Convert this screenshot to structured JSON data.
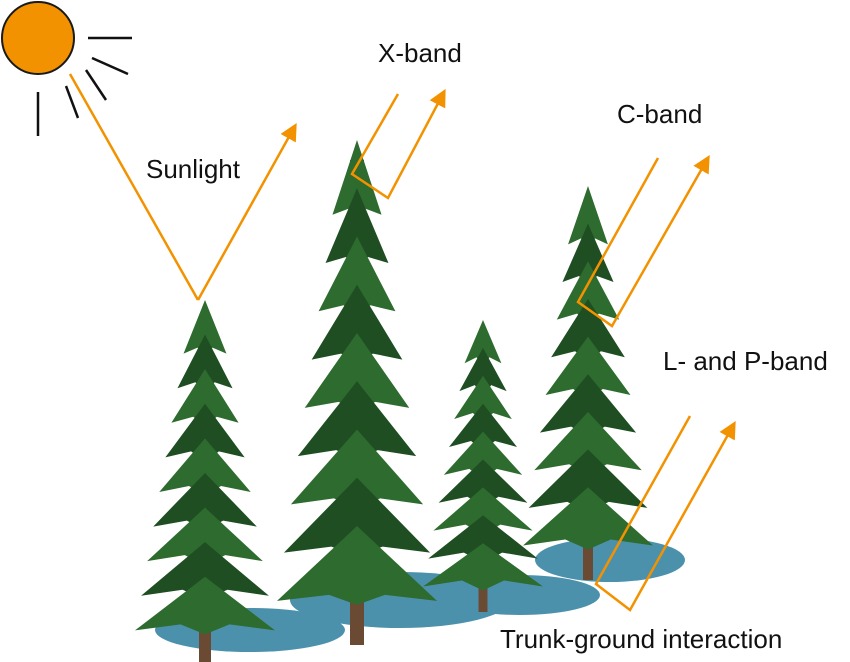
{
  "colors": {
    "accent": "#F39200",
    "sun": "#F39200",
    "foliage": "#2E6B2E",
    "foliage_dark": "#1E4E22",
    "trunk": "#6B4A34",
    "shadow": "#2D7E9E"
  },
  "labels": {
    "sunlight": "Sunlight",
    "x_band": "X-band",
    "c_band": "C-band",
    "l_p_band": "L- and P-band",
    "trunk_ground": "Trunk-ground interaction"
  },
  "icons": {
    "sun": "sun-icon",
    "tree": "conifer-tree-icon",
    "arrow": "arrow-icon"
  }
}
